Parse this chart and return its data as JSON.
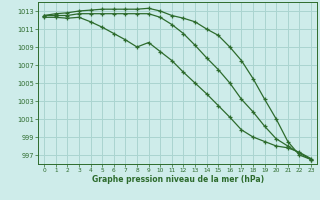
{
  "title": "Graphe pression niveau de la mer (hPa)",
  "bg_color": "#ceecea",
  "grid_color": "#aad4d0",
  "line_color": "#2d6b2d",
  "xlim": [
    -0.5,
    23.5
  ],
  "ylim": [
    996.0,
    1014.0
  ],
  "xticks": [
    0,
    1,
    2,
    3,
    4,
    5,
    6,
    7,
    8,
    9,
    10,
    11,
    12,
    13,
    14,
    15,
    16,
    17,
    18,
    19,
    20,
    21,
    22,
    23
  ],
  "yticks": [
    997,
    999,
    1001,
    1003,
    1005,
    1007,
    1009,
    1011,
    1013
  ],
  "series1": [
    1012.5,
    1012.7,
    1012.8,
    1013.0,
    1013.1,
    1013.2,
    1013.2,
    1013.2,
    1013.2,
    1013.3,
    1013.0,
    1012.5,
    1012.2,
    1011.8,
    1011.0,
    1010.3,
    1009.0,
    1007.5,
    1005.5,
    1003.2,
    1001.0,
    998.5,
    997.0,
    996.5
  ],
  "series2": [
    1012.5,
    1012.5,
    1012.5,
    1012.7,
    1012.7,
    1012.7,
    1012.7,
    1012.7,
    1012.7,
    1012.7,
    1012.3,
    1011.5,
    1010.5,
    1009.2,
    1007.8,
    1006.5,
    1005.0,
    1003.2,
    1001.8,
    1000.2,
    998.8,
    998.0,
    997.2,
    996.5
  ],
  "series3": [
    1012.3,
    1012.3,
    1012.2,
    1012.3,
    1011.8,
    1011.2,
    1010.5,
    1009.8,
    1009.0,
    1009.5,
    1008.5,
    1007.5,
    1006.2,
    1005.0,
    1003.8,
    1002.5,
    1001.2,
    999.8,
    999.0,
    998.5,
    998.0,
    997.8,
    997.3,
    996.6
  ]
}
